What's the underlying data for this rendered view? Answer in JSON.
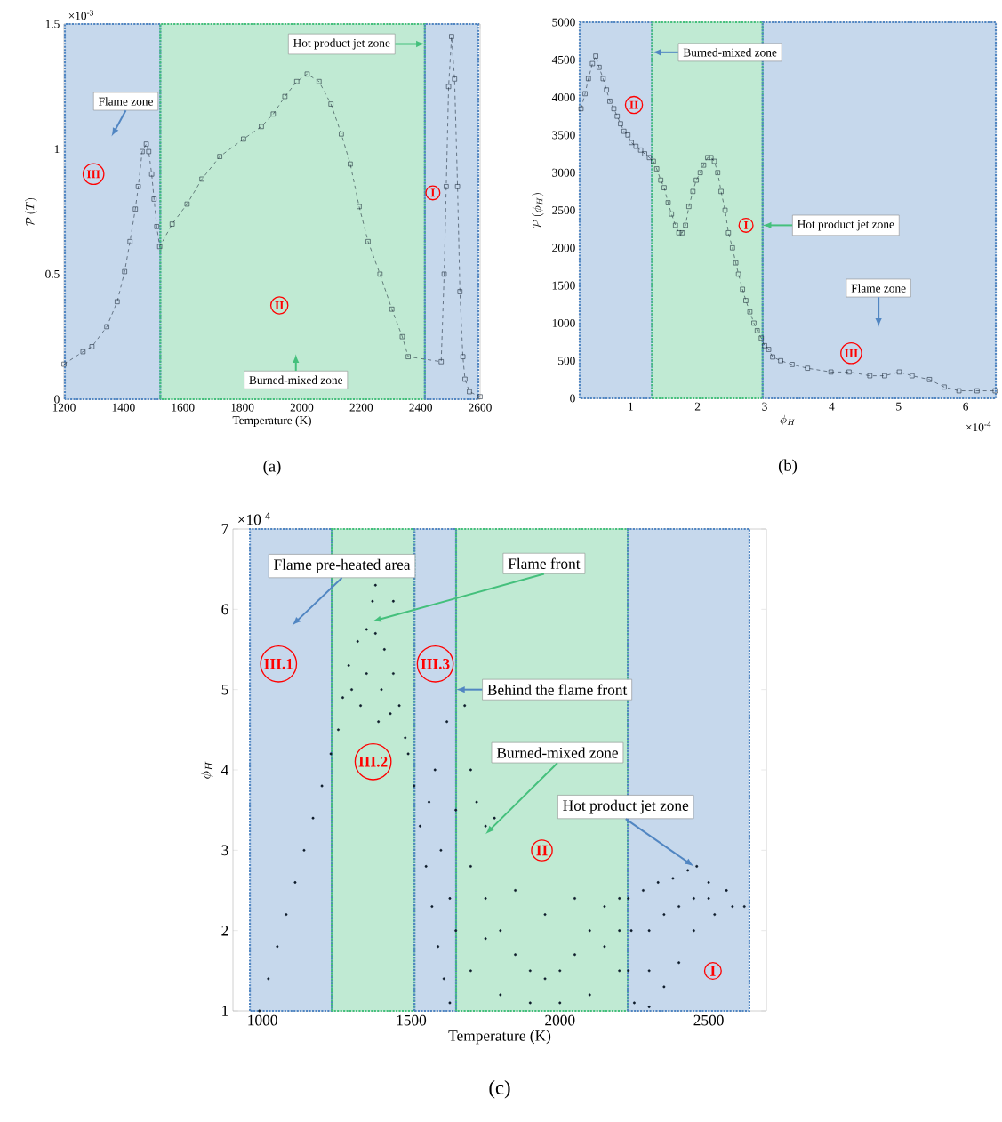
{
  "chart_data": [
    {
      "type": "line",
      "title": "(a)",
      "xlabel": "Temperature (K)",
      "ylabel": "\\mathcal{P}\\,(T)",
      "color": "#0d1b2a",
      "marker": "square",
      "line_style": "dashed",
      "x": [
        1200,
        1264,
        1294,
        1344,
        1379,
        1404,
        1422,
        1440,
        1450,
        1463,
        1477,
        1485,
        1495,
        1503,
        1512,
        1522,
        1564,
        1614,
        1664,
        1724,
        1804,
        1864,
        1904,
        1943,
        1983,
        2018,
        2058,
        2098,
        2133,
        2163,
        2193,
        2223,
        2263,
        2303,
        2338,
        2358,
        2469,
        2479,
        2486,
        2494,
        2504,
        2514,
        2524,
        2532,
        2542,
        2549,
        2564,
        2600
      ],
      "values": [
        0.14,
        0.19,
        0.21,
        0.29,
        0.39,
        0.51,
        0.63,
        0.76,
        0.85,
        0.99,
        1.02,
        0.99,
        0.9,
        0.8,
        0.69,
        0.61,
        0.7,
        0.78,
        0.88,
        0.97,
        1.04,
        1.09,
        1.14,
        1.21,
        1.27,
        1.3,
        1.27,
        1.18,
        1.06,
        0.94,
        0.77,
        0.63,
        0.5,
        0.36,
        0.25,
        0.17,
        0.15,
        0.5,
        0.85,
        1.25,
        1.45,
        1.28,
        0.85,
        0.43,
        0.17,
        0.08,
        0.03,
        0.01
      ],
      "xlim": [
        1200,
        2600
      ],
      "ylim": [
        0,
        1.5
      ],
      "xticks": [
        1200,
        1400,
        1600,
        1800,
        2000,
        2200,
        2400,
        2600
      ],
      "yticks": [
        0,
        0.5,
        1,
        1.5
      ],
      "bands": [
        {
          "axis": "x",
          "from": 1203,
          "to": 1524,
          "label": "III",
          "color": "#c6d8ec"
        },
        {
          "axis": "x",
          "from": 1524,
          "to": 2414,
          "label": "II",
          "color": "#c0ead3"
        },
        {
          "axis": "x",
          "from": 2414,
          "to": 2594,
          "label": "I",
          "color": "#c6d8ec"
        }
      ],
      "annotations": [
        "×10$^{-3}$",
        "Flame zone",
        {
          "text": "Hot product jet zone",
          "x": 2414,
          "y": 1.42
        },
        "Burned-mixed  zone"
      ]
    },
    {
      "type": "line",
      "title": "(b)",
      "xlabel": "\\phi_H",
      "ylabel": "\\mathcal{P}\\,(\\phi_H)",
      "color": "#0d1b2a",
      "marker": "square",
      "line_style": "dashed",
      "x": [
        0.26,
        0.32,
        0.37,
        0.43,
        0.48,
        0.53,
        0.59,
        0.64,
        0.69,
        0.75,
        0.8,
        0.85,
        0.9,
        0.96,
        1.01,
        1.08,
        1.15,
        1.21,
        1.28,
        1.34,
        1.39,
        1.45,
        1.5,
        1.56,
        1.61,
        1.67,
        1.72,
        1.77,
        1.82,
        1.87,
        1.93,
        1.98,
        2.04,
        2.09,
        2.15,
        2.2,
        2.25,
        2.3,
        2.35,
        2.41,
        2.46,
        2.52,
        2.57,
        2.61,
        2.67,
        2.72,
        2.78,
        2.84,
        2.89,
        2.95,
        3.0,
        3.06,
        3.12,
        3.24,
        3.41,
        3.64,
        3.99,
        4.26,
        4.57,
        4.79,
        5.01,
        5.2,
        5.46,
        5.68,
        5.9,
        6.17,
        6.44
      ],
      "values": [
        3850,
        4050,
        4250,
        4450,
        4550,
        4400,
        4250,
        4100,
        3950,
        3850,
        3750,
        3650,
        3550,
        3500,
        3400,
        3350,
        3300,
        3250,
        3200,
        3150,
        3050,
        2900,
        2800,
        2600,
        2450,
        2300,
        2200,
        2200,
        2300,
        2550,
        2750,
        2900,
        3000,
        3100,
        3200,
        3200,
        3150,
        3000,
        2750,
        2500,
        2200,
        2000,
        1800,
        1650,
        1450,
        1300,
        1150,
        1000,
        900,
        800,
        700,
        650,
        550,
        500,
        450,
        400,
        350,
        350,
        300,
        300,
        350,
        300,
        250,
        150,
        100,
        100,
        100
      ],
      "xlim": [
        0.24,
        6.45
      ],
      "ylim": [
        0,
        5000
      ],
      "xticks": [
        1,
        2,
        3,
        4,
        5,
        6
      ],
      "yticks": [
        0,
        500,
        1000,
        1500,
        2000,
        2500,
        3000,
        3500,
        4000,
        4500,
        5000
      ],
      "bands": [
        {
          "axis": "x",
          "from": 0.24,
          "to": 1.32,
          "label": "II",
          "color": "#c6d8ec"
        },
        {
          "axis": "x",
          "from": 1.32,
          "to": 2.97,
          "label": "I",
          "color": "#c0ead3"
        },
        {
          "axis": "x",
          "from": 2.97,
          "to": 6.45,
          "label": "III",
          "color": "#c6d8ec"
        }
      ],
      "annotations": [
        "×10$^{-4}$",
        {
          "text": "Burned-mixed  zone",
          "x": 1.32,
          "y": 4600
        },
        {
          "text": "Hot product jet zone",
          "x": 2.97,
          "y": 2300
        },
        "Flame zone"
      ]
    },
    {
      "type": "scatter",
      "title": "(c)",
      "xlabel": "Temperature (K)",
      "ylabel": "\\phi_H",
      "color": "#0d1b2a",
      "marker": "circle",
      "x": [
        990,
        1020,
        1050,
        1080,
        1110,
        1140,
        1170,
        1200,
        1230,
        1255,
        1270,
        1290,
        1320,
        1350,
        1380,
        1410,
        1440,
        1460,
        1480,
        1300,
        1350,
        1400,
        1430,
        1330,
        1390,
        1370,
        1440,
        1380,
        1490,
        1510,
        1530,
        1550,
        1570,
        1590,
        1610,
        1630,
        1560,
        1600,
        1630,
        1650,
        1580,
        1620,
        1650,
        1700,
        1720,
        1750,
        1680,
        1780,
        1700,
        1750,
        1800,
        1850,
        1900,
        1950,
        2000,
        2050,
        2100,
        2150,
        2200,
        1700,
        1800,
        1900,
        2000,
        2100,
        2200,
        1750,
        1850,
        1950,
        2050,
        2150,
        2200,
        2230,
        2280,
        2330,
        2380,
        2430,
        2460,
        2500,
        2560,
        2620,
        2580,
        2520,
        2450,
        2400,
        2350,
        2300,
        2250,
        2230,
        2240,
        2300,
        2350,
        2400,
        2300,
        2450,
        2500
      ],
      "values": [
        1.0,
        1.4,
        1.8,
        2.2,
        2.6,
        3.0,
        3.4,
        3.8,
        4.2,
        4.5,
        4.9,
        5.3,
        5.6,
        5.75,
        5.7,
        5.5,
        5.2,
        4.8,
        4.4,
        5.0,
        5.2,
        5.0,
        4.7,
        4.8,
        4.6,
        6.1,
        6.1,
        6.3,
        4.2,
        3.8,
        3.3,
        2.8,
        2.3,
        1.8,
        1.4,
        1.1,
        3.6,
        3.0,
        2.4,
        2.0,
        4.0,
        4.6,
        3.5,
        4.0,
        3.6,
        3.3,
        4.8,
        3.4,
        2.8,
        2.4,
        2.0,
        1.7,
        1.5,
        1.4,
        1.5,
        1.7,
        2.0,
        2.3,
        2.4,
        1.5,
        1.2,
        1.1,
        1.1,
        1.2,
        1.5,
        1.9,
        2.5,
        2.2,
        2.4,
        1.8,
        2.0,
        2.4,
        2.5,
        2.6,
        2.65,
        2.75,
        2.8,
        2.6,
        2.5,
        2.3,
        2.3,
        2.2,
        2.0,
        1.6,
        1.3,
        1.05,
        1.1,
        1.5,
        2.0,
        2.0,
        2.2,
        2.3,
        1.5,
        2.4,
        2.4
      ],
      "xlim": [
        901,
        2694
      ],
      "ylim": [
        1,
        7
      ],
      "xticks": [
        1000,
        1500,
        2000,
        2500
      ],
      "yticks": [
        1,
        2,
        3,
        4,
        5,
        6,
        7
      ],
      "bands": [
        {
          "axis": "x",
          "from": 958,
          "to": 1233,
          "label": "III.1",
          "color": "#c6d8ec"
        },
        {
          "axis": "x",
          "from": 1233,
          "to": 1511,
          "label": "III.2",
          "color": "#c0ead3"
        },
        {
          "axis": "x",
          "from": 1511,
          "to": 1651,
          "label": "III.3",
          "color": "#c6d8ec"
        },
        {
          "axis": "x",
          "from": 1651,
          "to": 2228,
          "label": "II",
          "color": "#c0ead3"
        },
        {
          "axis": "x",
          "from": 2228,
          "to": 2637,
          "label": "I",
          "color": "#c6d8ec"
        }
      ],
      "annotations": [
        "×10$^{-4}$",
        "Flame pre-heated area",
        "Flame front",
        {
          "text": "Behind the flame front",
          "x": 1651,
          "y": 5.0
        },
        "Burned-mixed  zone",
        {
          "text": "Hot product jet zone",
          "x": 2450,
          "y": 2.8
        }
      ]
    }
  ]
}
